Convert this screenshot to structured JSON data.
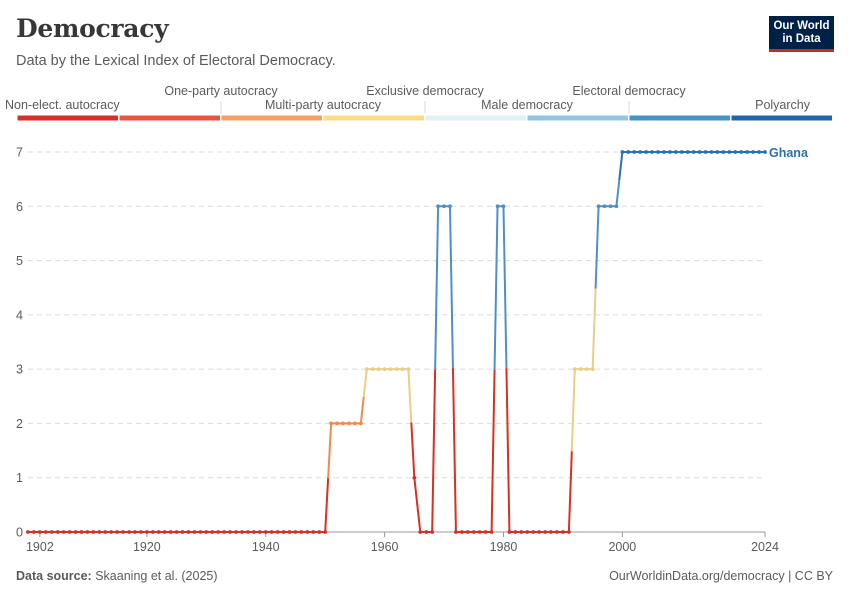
{
  "header": {
    "title": "Democracy",
    "subtitle": "Data by the Lexical Index of Electoral Democracy.",
    "logo_line1": "Our World",
    "logo_line2": "in Data"
  },
  "legend": [
    {
      "label": "Non-elect. autocracy",
      "color": "#d73027"
    },
    {
      "label": "One-party autocracy",
      "color": "#e8553d"
    },
    {
      "label": "Multi-party autocracy",
      "color": "#f4a261"
    },
    {
      "label": "Exclusive democracy",
      "color": "#f9dc86"
    },
    {
      "label": "Male democracy",
      "color": "#e0f1f8"
    },
    {
      "label": "Electoral democracy",
      "color": "#92c5de"
    },
    {
      "label": "Polyarchy",
      "color": "#4393c3"
    },
    {
      "label": "",
      "color": "#2166ac"
    }
  ],
  "chart_data": {
    "type": "line",
    "title": "Democracy",
    "subtitle": "Data by the Lexical Index of Electoral Democracy.",
    "xlabel": "",
    "ylabel": "",
    "xlim": [
      1900,
      2024
    ],
    "ylim": [
      0,
      7
    ],
    "yticks": [
      0,
      1,
      2,
      3,
      4,
      5,
      6,
      7
    ],
    "xticks": [
      1902,
      1920,
      1940,
      1960,
      1980,
      2000,
      2024
    ],
    "grid": "horizontal dashed",
    "series": [
      {
        "name": "Ghana",
        "x": [
          1900,
          1901,
          1902,
          1903,
          1904,
          1905,
          1906,
          1907,
          1908,
          1909,
          1910,
          1911,
          1912,
          1913,
          1914,
          1915,
          1916,
          1917,
          1918,
          1919,
          1920,
          1921,
          1922,
          1923,
          1924,
          1925,
          1926,
          1927,
          1928,
          1929,
          1930,
          1931,
          1932,
          1933,
          1934,
          1935,
          1936,
          1937,
          1938,
          1939,
          1940,
          1941,
          1942,
          1943,
          1944,
          1945,
          1946,
          1947,
          1948,
          1949,
          1950,
          1951,
          1952,
          1953,
          1954,
          1955,
          1956,
          1957,
          1958,
          1959,
          1960,
          1961,
          1962,
          1963,
          1964,
          1965,
          1966,
          1967,
          1968,
          1969,
          1970,
          1971,
          1972,
          1973,
          1974,
          1975,
          1976,
          1977,
          1978,
          1979,
          1980,
          1981,
          1982,
          1983,
          1984,
          1985,
          1986,
          1987,
          1988,
          1989,
          1990,
          1991,
          1992,
          1993,
          1994,
          1995,
          1996,
          1997,
          1998,
          1999,
          2000,
          2001,
          2002,
          2003,
          2004,
          2005,
          2006,
          2007,
          2008,
          2009,
          2010,
          2011,
          2012,
          2013,
          2014,
          2015,
          2016,
          2017,
          2018,
          2019,
          2020,
          2021,
          2022,
          2023,
          2024
        ],
        "values": [
          0,
          0,
          0,
          0,
          0,
          0,
          0,
          0,
          0,
          0,
          0,
          0,
          0,
          0,
          0,
          0,
          0,
          0,
          0,
          0,
          0,
          0,
          0,
          0,
          0,
          0,
          0,
          0,
          0,
          0,
          0,
          0,
          0,
          0,
          0,
          0,
          0,
          0,
          0,
          0,
          0,
          0,
          0,
          0,
          0,
          0,
          0,
          0,
          0,
          0,
          0,
          2,
          2,
          2,
          2,
          2,
          2,
          3,
          3,
          3,
          3,
          3,
          3,
          3,
          3,
          1,
          0,
          0,
          0,
          6,
          6,
          6,
          0,
          0,
          0,
          0,
          0,
          0,
          0,
          6,
          6,
          0,
          0,
          0,
          0,
          0,
          0,
          0,
          0,
          0,
          0,
          0,
          3,
          3,
          3,
          3,
          6,
          6,
          6,
          6,
          7,
          7,
          7,
          7,
          7,
          7,
          7,
          7,
          7,
          7,
          7,
          7,
          7,
          7,
          7,
          7,
          7,
          7,
          7,
          7,
          7,
          7,
          7,
          7,
          7
        ]
      }
    ],
    "source": "Skaaning et al. (2025)"
  },
  "footer": {
    "source_label": "Data source:",
    "source_text": "Skaaning et al. (2025)",
    "url": "OurWorldinData.org/democracy | CC BY"
  }
}
